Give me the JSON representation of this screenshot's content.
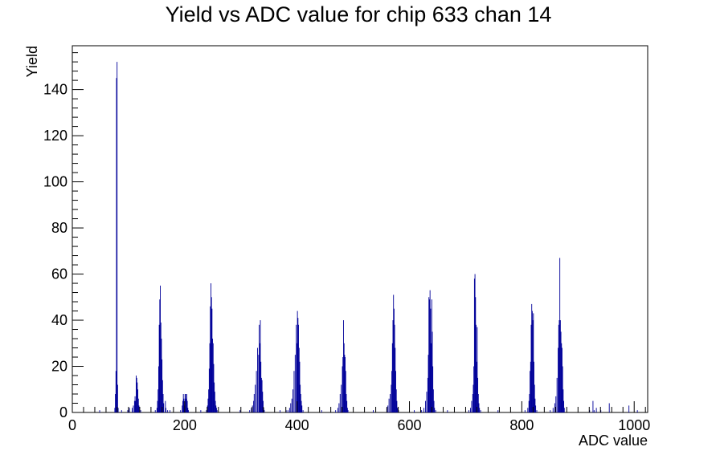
{
  "chart_data": {
    "type": "histogram",
    "title": "Yield vs ADC value for chip 633 chan 14",
    "xlabel": "ADC value",
    "ylabel": "Yield",
    "xlim": [
      0,
      1024
    ],
    "ylim": [
      0,
      159
    ],
    "x_ticks": [
      0,
      200,
      400,
      600,
      800,
      1000
    ],
    "y_ticks": [
      0,
      20,
      40,
      60,
      80,
      100,
      120,
      140
    ],
    "line_color": "#000099",
    "grid": false,
    "legend": "none",
    "bin_width": 1,
    "bins": [
      [
        48,
        1
      ],
      [
        75,
        2
      ],
      [
        76,
        8
      ],
      [
        77,
        18
      ],
      [
        78,
        145
      ],
      [
        79,
        152
      ],
      [
        80,
        12
      ],
      [
        81,
        2
      ],
      [
        87,
        1
      ],
      [
        98,
        1
      ],
      [
        101,
        2
      ],
      [
        106,
        2
      ],
      [
        108,
        3
      ],
      [
        110,
        5
      ],
      [
        111,
        7
      ],
      [
        112,
        5
      ],
      [
        113,
        16
      ],
      [
        114,
        15
      ],
      [
        115,
        13
      ],
      [
        116,
        10
      ],
      [
        117,
        6
      ],
      [
        118,
        3
      ],
      [
        121,
        1
      ],
      [
        147,
        1
      ],
      [
        150,
        2
      ],
      [
        151,
        5
      ],
      [
        152,
        10
      ],
      [
        153,
        20
      ],
      [
        154,
        38
      ],
      [
        155,
        49
      ],
      [
        156,
        55
      ],
      [
        157,
        39
      ],
      [
        158,
        32
      ],
      [
        159,
        23
      ],
      [
        160,
        14
      ],
      [
        161,
        8
      ],
      [
        162,
        4
      ],
      [
        165,
        5
      ],
      [
        166,
        2
      ],
      [
        169,
        1
      ],
      [
        173,
        1
      ],
      [
        192,
        1
      ],
      [
        195,
        3
      ],
      [
        196,
        5
      ],
      [
        197,
        8
      ],
      [
        198,
        6
      ],
      [
        199,
        3
      ],
      [
        200,
        8
      ],
      [
        201,
        8
      ],
      [
        202,
        6
      ],
      [
        203,
        8
      ],
      [
        204,
        5
      ],
      [
        205,
        2
      ],
      [
        206,
        1
      ],
      [
        228,
        1
      ],
      [
        238,
        1
      ],
      [
        240,
        3
      ],
      [
        241,
        6
      ],
      [
        242,
        10
      ],
      [
        243,
        19
      ],
      [
        244,
        30
      ],
      [
        245,
        46
      ],
      [
        246,
        56
      ],
      [
        247,
        50
      ],
      [
        248,
        45
      ],
      [
        249,
        32
      ],
      [
        250,
        30
      ],
      [
        251,
        21
      ],
      [
        252,
        13
      ],
      [
        253,
        9
      ],
      [
        254,
        5
      ],
      [
        255,
        3
      ],
      [
        256,
        2
      ],
      [
        257,
        1
      ],
      [
        298,
        1
      ],
      [
        315,
        1
      ],
      [
        318,
        2
      ],
      [
        320,
        3
      ],
      [
        322,
        5
      ],
      [
        323,
        8
      ],
      [
        325,
        12
      ],
      [
        327,
        18
      ],
      [
        329,
        28
      ],
      [
        331,
        25
      ],
      [
        332,
        38
      ],
      [
        333,
        30
      ],
      [
        334,
        40
      ],
      [
        335,
        22
      ],
      [
        336,
        15
      ],
      [
        337,
        14
      ],
      [
        338,
        9
      ],
      [
        339,
        5
      ],
      [
        340,
        2
      ],
      [
        341,
        1
      ],
      [
        369,
        1
      ],
      [
        380,
        1
      ],
      [
        383,
        1
      ],
      [
        386,
        2
      ],
      [
        388,
        4
      ],
      [
        390,
        6
      ],
      [
        392,
        10
      ],
      [
        394,
        18
      ],
      [
        396,
        25
      ],
      [
        398,
        38
      ],
      [
        399,
        30
      ],
      [
        400,
        44
      ],
      [
        401,
        41
      ],
      [
        402,
        38
      ],
      [
        403,
        28
      ],
      [
        404,
        22
      ],
      [
        405,
        12
      ],
      [
        406,
        8
      ],
      [
        407,
        5
      ],
      [
        408,
        3
      ],
      [
        410,
        1
      ],
      [
        443,
        1
      ],
      [
        468,
        1
      ],
      [
        472,
        2
      ],
      [
        474,
        4
      ],
      [
        476,
        8
      ],
      [
        478,
        12
      ],
      [
        480,
        20
      ],
      [
        481,
        24
      ],
      [
        482,
        40
      ],
      [
        483,
        30
      ],
      [
        484,
        25
      ],
      [
        485,
        24
      ],
      [
        486,
        18
      ],
      [
        487,
        8
      ],
      [
        488,
        5
      ],
      [
        489,
        2
      ],
      [
        490,
        1
      ],
      [
        535,
        1
      ],
      [
        559,
        2
      ],
      [
        561,
        3
      ],
      [
        563,
        6
      ],
      [
        565,
        8
      ],
      [
        567,
        12
      ],
      [
        568,
        18
      ],
      [
        569,
        30
      ],
      [
        570,
        40
      ],
      [
        571,
        51
      ],
      [
        572,
        45
      ],
      [
        573,
        38
      ],
      [
        574,
        28
      ],
      [
        575,
        18
      ],
      [
        576,
        10
      ],
      [
        577,
        5
      ],
      [
        578,
        2
      ],
      [
        580,
        1
      ],
      [
        608,
        1
      ],
      [
        621,
        1
      ],
      [
        625,
        2
      ],
      [
        628,
        5
      ],
      [
        630,
        9
      ],
      [
        632,
        15
      ],
      [
        633,
        25
      ],
      [
        634,
        50
      ],
      [
        635,
        49
      ],
      [
        636,
        53
      ],
      [
        637,
        45
      ],
      [
        638,
        30
      ],
      [
        639,
        49
      ],
      [
        640,
        35
      ],
      [
        641,
        20
      ],
      [
        642,
        10
      ],
      [
        643,
        5
      ],
      [
        644,
        2
      ],
      [
        646,
        1
      ],
      [
        667,
        1
      ],
      [
        705,
        1
      ],
      [
        708,
        2
      ],
      [
        710,
        5
      ],
      [
        712,
        8
      ],
      [
        713,
        12
      ],
      [
        714,
        20
      ],
      [
        715,
        58
      ],
      [
        716,
        60
      ],
      [
        717,
        50
      ],
      [
        718,
        38
      ],
      [
        719,
        22
      ],
      [
        720,
        37
      ],
      [
        721,
        15
      ],
      [
        722,
        8
      ],
      [
        723,
        4
      ],
      [
        724,
        2
      ],
      [
        726,
        1
      ],
      [
        757,
        1
      ],
      [
        805,
        1
      ],
      [
        810,
        2
      ],
      [
        812,
        5
      ],
      [
        813,
        8
      ],
      [
        814,
        18
      ],
      [
        815,
        22
      ],
      [
        816,
        38
      ],
      [
        817,
        47
      ],
      [
        818,
        44
      ],
      [
        819,
        40
      ],
      [
        820,
        43
      ],
      [
        821,
        22
      ],
      [
        822,
        12
      ],
      [
        823,
        6
      ],
      [
        824,
        3
      ],
      [
        826,
        1
      ],
      [
        850,
        1
      ],
      [
        855,
        2
      ],
      [
        858,
        4
      ],
      [
        860,
        7
      ],
      [
        862,
        15
      ],
      [
        864,
        28
      ],
      [
        865,
        38
      ],
      [
        866,
        40
      ],
      [
        867,
        67
      ],
      [
        868,
        40
      ],
      [
        869,
        35
      ],
      [
        870,
        30
      ],
      [
        871,
        28
      ],
      [
        872,
        20
      ],
      [
        873,
        10
      ],
      [
        874,
        5
      ],
      [
        875,
        2
      ],
      [
        920,
        1
      ],
      [
        926,
        5
      ],
      [
        928,
        1
      ],
      [
        932,
        2
      ],
      [
        940,
        1
      ],
      [
        955,
        4
      ],
      [
        990,
        3
      ],
      [
        1005,
        1
      ]
    ]
  }
}
